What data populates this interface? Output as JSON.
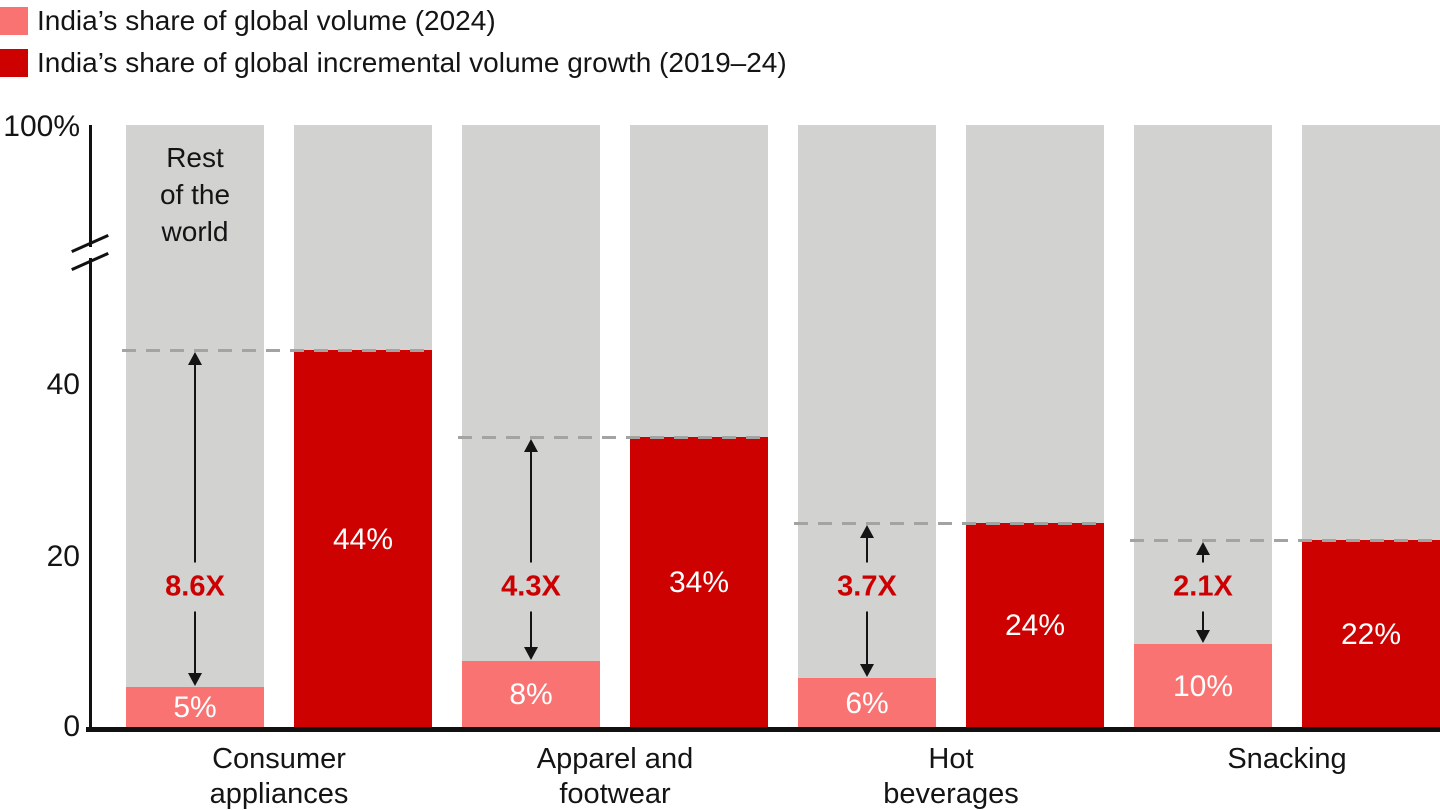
{
  "legend": {
    "items": [
      {
        "label": "India’s share of global volume (2024)",
        "color": "#FA7373"
      },
      {
        "label": "India’s share of global incremental volume growth (2019–24)",
        "color": "#CC0100"
      }
    ]
  },
  "y_axis": {
    "top_label": "100%",
    "ticks": [
      "40",
      "20",
      "0"
    ],
    "has_break": true
  },
  "rest_of_world": {
    "lines": [
      "Rest",
      "of the",
      "world"
    ]
  },
  "chart_data": {
    "type": "bar",
    "title": "",
    "categories": [
      "Consumer appliances",
      "Apparel and footwear",
      "Hot beverages",
      "Snacking"
    ],
    "category_label_lines": [
      [
        "Consumer",
        "appliances"
      ],
      [
        "Apparel and",
        "footwear"
      ],
      [
        "Hot",
        "beverages"
      ],
      [
        "Snacking"
      ]
    ],
    "series": [
      {
        "name": "India’s share of global volume (2024)",
        "values": [
          5,
          8,
          6,
          10
        ],
        "unit": "%",
        "color": "#FA7373"
      },
      {
        "name": "India’s share of global incremental volume growth (2019–24)",
        "values": [
          44,
          34,
          24,
          22
        ],
        "unit": "%",
        "color": "#CC0100"
      }
    ],
    "value_labels": {
      "volume": [
        "5%",
        "8%",
        "6%",
        "10%"
      ],
      "growth": [
        "44%",
        "34%",
        "24%",
        "22%"
      ]
    },
    "multipliers": [
      "8.6X",
      "4.3X",
      "3.7X",
      "2.1X"
    ],
    "rest_of_world_color": "#D2D2D0",
    "background_segment_label": "Rest of the world",
    "ylim": [
      0,
      100
    ],
    "yticks_shown": [
      0,
      20,
      40,
      100
    ],
    "axis_break_between": [
      50,
      100
    ],
    "grid": false,
    "legend_position": "top-left"
  }
}
